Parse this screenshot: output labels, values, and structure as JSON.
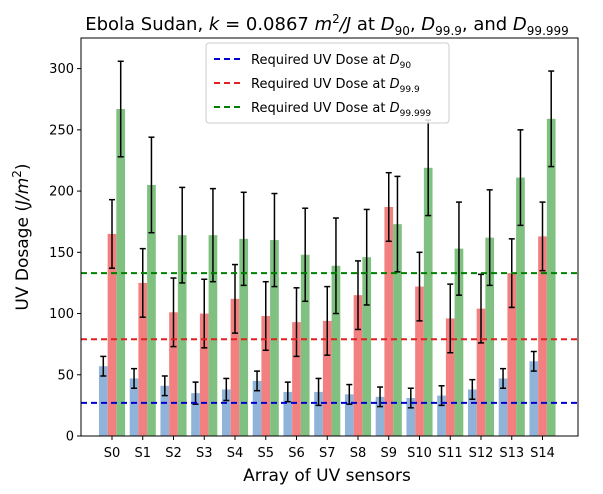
{
  "chart_data": {
    "type": "bar",
    "title": {
      "prefix": "Ebola Sudan, ",
      "k_symbol": "k",
      "k_eq": " = 0.0867 ",
      "unit_main": "m",
      "unit_sup": "2",
      "unit_rest": "/J",
      "at_text": " at ",
      "d90": "D",
      "d90_sub": "90",
      "sep1": ", ",
      "d999": "D",
      "d999_sub": "99.9",
      "and_text": ", and ",
      "d99999": "D",
      "d99999_sub": "99.999"
    },
    "xlabel": "Array of UV sensors",
    "ylabel": {
      "text": "UV Dosage (",
      "unit_main": "J/m",
      "unit_sup": "2",
      "close": ")"
    },
    "ylim": [
      0,
      325
    ],
    "yticks": [
      0,
      50,
      100,
      150,
      200,
      250,
      300
    ],
    "categories": [
      "S0",
      "S1",
      "S2",
      "S3",
      "S4",
      "S5",
      "S6",
      "S7",
      "S8",
      "S9",
      "S10",
      "S11",
      "S12",
      "S13",
      "S14"
    ],
    "series": [
      {
        "name": "D90",
        "color": "#8fb3d9",
        "values": [
          57,
          47,
          41,
          35,
          38,
          45,
          36,
          36,
          34,
          32,
          31,
          33,
          38,
          47,
          61
        ],
        "errors": [
          8,
          8,
          8,
          9,
          9,
          8,
          8,
          11,
          8,
          8,
          8,
          8,
          8,
          8,
          8
        ]
      },
      {
        "name": "D99.9",
        "color": "#f28080",
        "values": [
          165,
          125,
          101,
          100,
          112,
          98,
          93,
          94,
          115,
          187,
          122,
          96,
          104,
          133,
          163
        ],
        "errors": [
          28,
          28,
          28,
          28,
          28,
          28,
          28,
          28,
          28,
          28,
          28,
          28,
          28,
          28,
          28
        ]
      },
      {
        "name": "D99.999",
        "color": "#80c080",
        "values": [
          267,
          205,
          164,
          164,
          161,
          160,
          148,
          139,
          146,
          173,
          219,
          153,
          162,
          211,
          259
        ],
        "errors": [
          39,
          39,
          39,
          38,
          38,
          38,
          38,
          39,
          39,
          39,
          39,
          38,
          39,
          39,
          39
        ]
      }
    ],
    "reference_lines": [
      {
        "name": "Required UV Dose at D90",
        "value": 27,
        "color": "#0000cc"
      },
      {
        "name": "Required UV Dose at D99.9",
        "value": 79,
        "color": "#e02020"
      },
      {
        "name": "Required UV Dose at D99.999",
        "value": 133,
        "color": "#008000"
      }
    ],
    "legend": {
      "placement": "top-center",
      "entries": [
        {
          "text": "Required UV Dose at ",
          "sym": "D",
          "sub": "90",
          "color": "#0000cc"
        },
        {
          "text": "Required UV Dose at ",
          "sym": "D",
          "sub": "99.9",
          "color": "#e02020"
        },
        {
          "text": "Required UV Dose at ",
          "sym": "D",
          "sub": "99.999",
          "color": "#008000"
        }
      ]
    }
  }
}
